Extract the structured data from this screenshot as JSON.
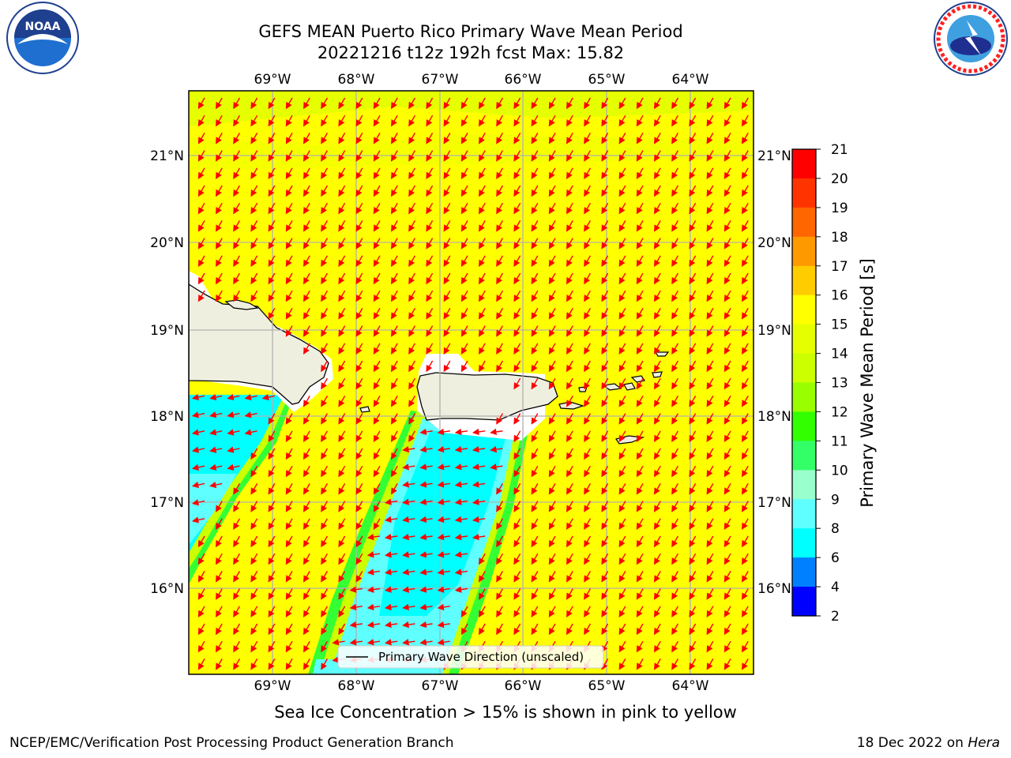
{
  "title_line1": "GEFS MEAN Puerto Rico Primary Wave Mean Period",
  "title_line2": "20221216 t12z 192h fcst   Max: 15.82",
  "logos": {
    "left": "NOAA",
    "right": "NATIONAL WEATHER SERVICE"
  },
  "map": {
    "lon_labels": [
      "69°W",
      "68°W",
      "67°W",
      "66°W",
      "65°W",
      "64°W"
    ],
    "lat_labels": [
      "21°N",
      "20°N",
      "19°N",
      "18°N",
      "17°N",
      "16°N"
    ],
    "legend_label": "Primary Wave Direction (unscaled)",
    "arrow_color": "#ff0000",
    "land_color": "#efefe0",
    "field_colors": {
      "yellow": "#ffff00",
      "cyan": "#00ffff",
      "light_cyan": "#5fffff",
      "green": "#32ff32",
      "yellow_green": "#ccff00"
    }
  },
  "colorbar": {
    "title": "Primary Wave Mean Period [s]",
    "ticks": [
      "21",
      "20",
      "19",
      "18",
      "17",
      "16",
      "15",
      "14",
      "13",
      "12",
      "11",
      "10",
      "9",
      "8",
      "6",
      "4",
      "2"
    ],
    "colors": [
      "#ff0000",
      "#ff3300",
      "#ff6600",
      "#ff9900",
      "#ffcc00",
      "#ffff00",
      "#e6ff00",
      "#ccff00",
      "#99ff00",
      "#32ff00",
      "#33ff66",
      "#99ffcc",
      "#5fffff",
      "#00ffff",
      "#0080ff",
      "#0000ff"
    ]
  },
  "caption": "Sea Ice Concentration > 15% is shown in pink to yellow",
  "footer_left": "NCEP/EMC/Verification Post Processing Product Generation Branch",
  "footer_right_prefix": "18 Dec 2022 on",
  "footer_right_host": "Hera"
}
